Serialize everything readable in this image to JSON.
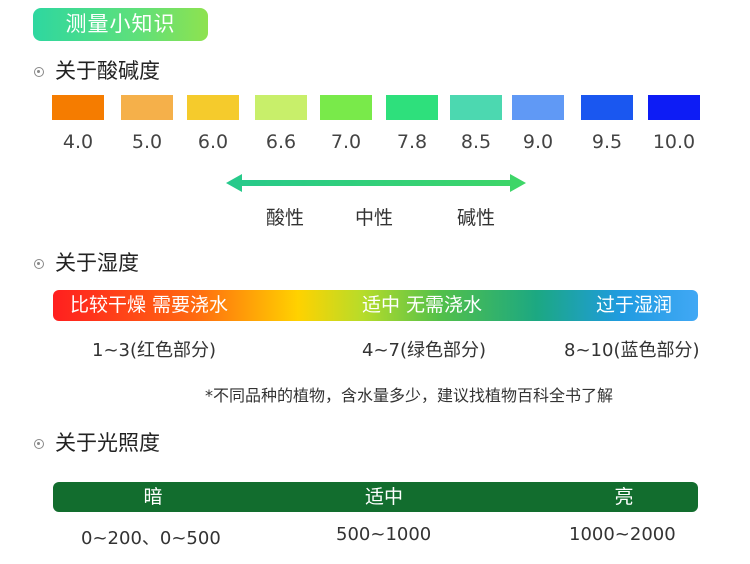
{
  "banner": "测量小知识",
  "sections": {
    "ph": "关于酸碱度",
    "humidity": "关于湿度",
    "light": "关于光照度"
  },
  "ph": {
    "swatches": [
      {
        "label": "4.0",
        "color": "#f57c00"
      },
      {
        "label": "5.0",
        "color": "#f5b04a"
      },
      {
        "label": "6.0",
        "color": "#f5cb2c"
      },
      {
        "label": "6.6",
        "color": "#c8ef6a"
      },
      {
        "label": "7.0",
        "color": "#79ea4a"
      },
      {
        "label": "7.8",
        "color": "#2ee07c"
      },
      {
        "label": "8.5",
        "color": "#4cd8b0"
      },
      {
        "label": "9.0",
        "color": "#6099f5"
      },
      {
        "label": "9.5",
        "color": "#1a57f0"
      },
      {
        "label": "10.0",
        "color": "#0d1cf5"
      }
    ],
    "arrow_labels": {
      "acid": "酸性",
      "neutral": "中性",
      "alkaline": "碱性"
    }
  },
  "humidity": {
    "bar_texts": {
      "dry": "比较干燥 需要浇水",
      "moderate": "适中 无需浇水",
      "wet": "过于湿润"
    },
    "ranges": {
      "red": "1~3(红色部分)",
      "green": "4~7(绿色部分)",
      "blue": "8~10(蓝色部分)"
    }
  },
  "note": "*不同品种的植物，含水量多少，建议找植物百科全书了解",
  "light": {
    "bar_texts": {
      "dark": "暗",
      "moderate": "适中",
      "bright": "亮"
    },
    "ranges": {
      "dark": "0~200、0~500",
      "moderate": "500~1000",
      "bright": "1000~2000"
    },
    "bar_color": "#126d2e"
  }
}
